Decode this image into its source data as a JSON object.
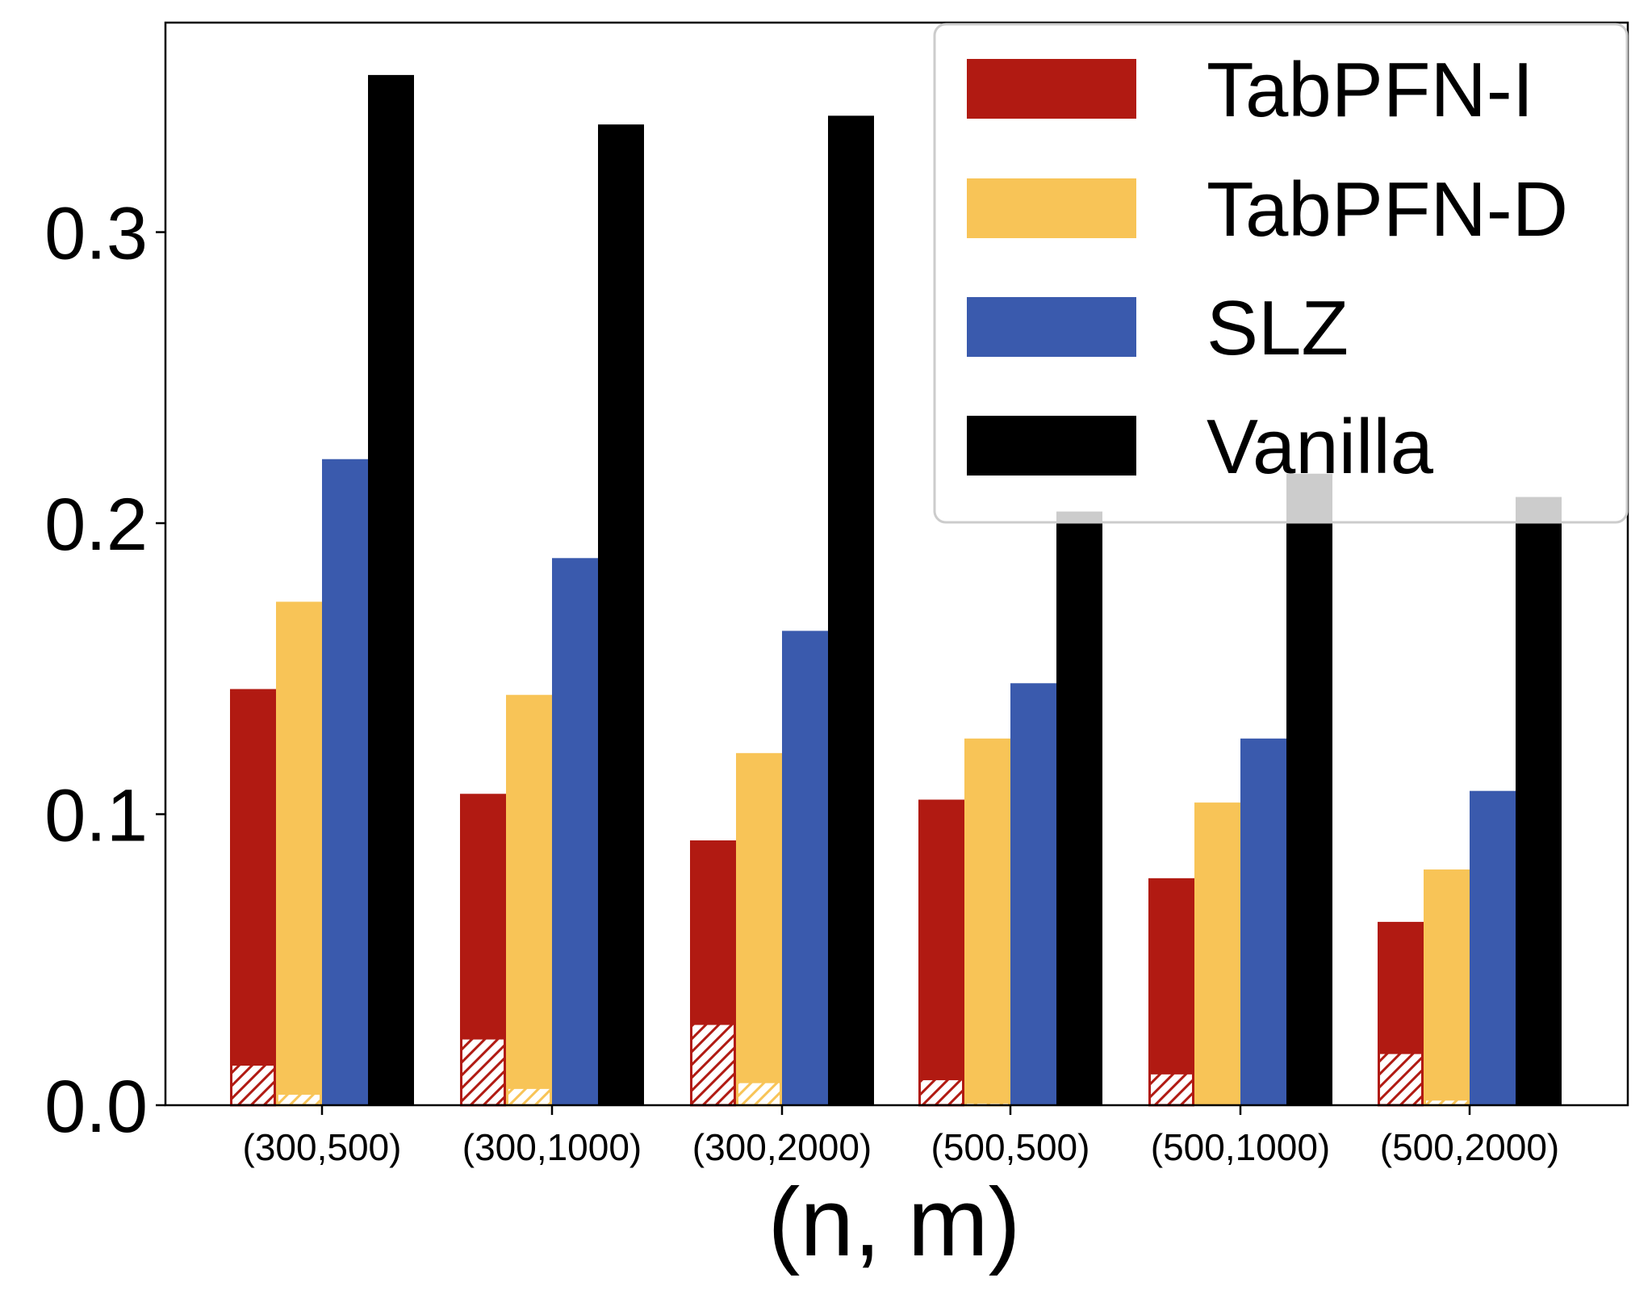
{
  "chart_data": {
    "type": "bar",
    "title": "",
    "xlabel": "(n, m)",
    "ylabel": "",
    "ylim": [
      0,
      0.372
    ],
    "yticks": [
      0.0,
      0.1,
      0.2,
      0.3
    ],
    "ytick_labels": [
      "0.0",
      "0.1",
      "0.2",
      "0.3"
    ],
    "categories": [
      "(300,500)",
      "(300,1000)",
      "(300,2000)",
      "(500,500)",
      "(500,1000)",
      "(500,2000)"
    ],
    "series": [
      {
        "name": "TabPFN-I",
        "color": "#b11a12",
        "values": [
          0.143,
          0.107,
          0.091,
          0.105,
          0.078,
          0.063
        ],
        "hatched_values": [
          0.014,
          0.023,
          0.028,
          0.009,
          0.011,
          0.018
        ]
      },
      {
        "name": "TabPFN-D",
        "color": "#f8c457",
        "values": [
          0.173,
          0.141,
          0.121,
          0.126,
          0.104,
          0.081
        ],
        "hatched_values": [
          0.004,
          0.006,
          0.008,
          0.001,
          0.0,
          0.002
        ]
      },
      {
        "name": "SLZ",
        "color": "#3a5aad",
        "values": [
          0.222,
          0.188,
          0.163,
          0.145,
          0.126,
          0.108
        ],
        "hatched_values": []
      },
      {
        "name": "Vanilla",
        "color": "#000000",
        "values": [
          0.354,
          0.337,
          0.34,
          0.204,
          0.217,
          0.209
        ],
        "hatched_values": []
      }
    ],
    "legend": {
      "placement": "top-right",
      "entries": [
        "TabPFN-I",
        "TabPFN-D",
        "SLZ",
        "Vanilla"
      ]
    },
    "grid": false
  }
}
